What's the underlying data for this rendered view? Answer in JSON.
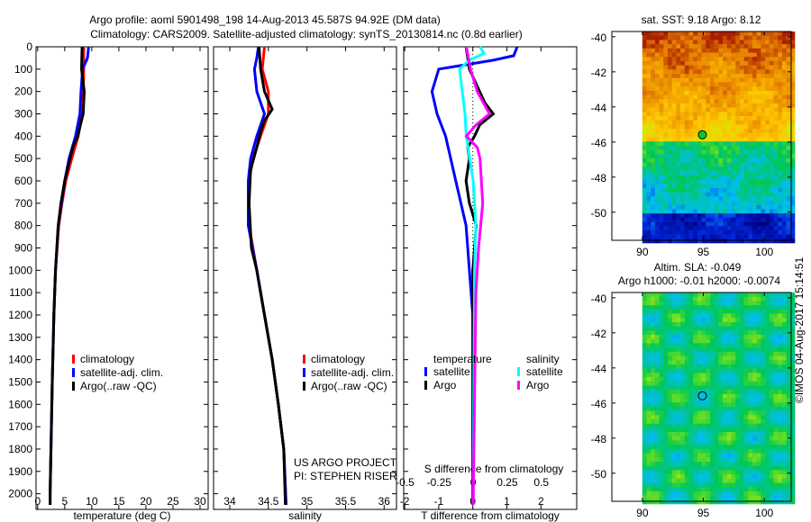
{
  "title": {
    "line1": "Argo profile: aoml 5901498_198 14-Aug-2013 45.587S 94.92E (DM data)",
    "line2": "Climatology: CARS2009. Satellite-adjusted climatology: synTS_20130814.nc (0.8d earlier)"
  },
  "credit": "©IMOS 04-Aug-2017 15:14:51",
  "project": {
    "line1": "US ARGO PROJECT",
    "line2": "PI: STEPHEN RISER"
  },
  "colors": {
    "climatology": "#ff0000",
    "satellite": "#0000ff",
    "argo": "#000000",
    "sat_s": "#00ffff",
    "argo_s": "#ff00ff"
  },
  "chart_data": [
    {
      "type": "line",
      "xlabel": "temperature (deg C)",
      "ylabel": "depth",
      "xlim": [
        -0.3,
        31.5
      ],
      "ylim": [
        2070,
        0
      ],
      "xticks": [
        "0",
        "5",
        "10",
        "15",
        "20",
        "25",
        "30"
      ],
      "yticks": [
        "0",
        "100",
        "200",
        "300",
        "400",
        "500",
        "600",
        "700",
        "800",
        "900",
        "1000",
        "1100",
        "1200",
        "1300",
        "1400",
        "1500",
        "1600",
        "1700",
        "1800",
        "1900",
        "2000"
      ],
      "legend": [
        "climatology",
        "satellite-adj. clim.",
        "Argo(..raw -QC)"
      ],
      "series": [
        {
          "name": "climatology",
          "color": "#ff0000",
          "depth": [
            0,
            100,
            250,
            300,
            400,
            500,
            600,
            700,
            800,
            1000,
            1200,
            1500,
            2000,
            2050
          ],
          "values": [
            8.5,
            8.5,
            8.4,
            8.2,
            7.5,
            6.3,
            5.2,
            4.5,
            3.9,
            3.3,
            3.0,
            2.7,
            2.3,
            2.3
          ]
        },
        {
          "name": "satellite-adj. clim.",
          "color": "#0000ff",
          "depth": [
            0,
            50,
            100,
            200,
            300,
            400,
            500,
            600,
            800,
            1000,
            1200,
            1500,
            2000,
            2050
          ],
          "values": [
            9.4,
            9.2,
            8.3,
            8.0,
            7.8,
            7.0,
            5.8,
            5.0,
            3.8,
            3.3,
            3.0,
            2.7,
            2.3,
            2.3
          ]
        },
        {
          "name": "Argo(..raw -QC)",
          "color": "#000000",
          "depth": [
            0,
            100,
            200,
            300,
            400,
            450,
            500,
            600,
            700,
            800,
            1000,
            1200,
            1500,
            2000,
            2050
          ],
          "values": [
            8.2,
            8.1,
            8.6,
            8.4,
            7.4,
            6.5,
            6.0,
            5.0,
            4.3,
            3.8,
            3.3,
            3.0,
            2.7,
            2.3,
            2.3
          ]
        }
      ]
    },
    {
      "type": "line",
      "xlabel": "salinity",
      "xlim": [
        33.79,
        36.16
      ],
      "ylim": [
        2070,
        0
      ],
      "xticks": [
        "34",
        "34.5",
        "35",
        "35.5",
        "36"
      ],
      "legend": [
        "climatology",
        "satellite-adj. clim.",
        "Argo(..raw -QC)"
      ],
      "series": [
        {
          "name": "climatology",
          "color": "#ff0000",
          "depth": [
            0,
            100,
            200,
            300,
            400,
            500,
            600,
            800,
            1000,
            1200,
            1400,
            1600,
            1800,
            2050
          ],
          "values": [
            34.45,
            34.42,
            34.5,
            34.5,
            34.4,
            34.3,
            34.25,
            34.25,
            34.35,
            34.45,
            34.55,
            34.63,
            34.7,
            34.73
          ]
        },
        {
          "name": "satellite-adj. clim.",
          "color": "#0000ff",
          "depth": [
            0,
            50,
            100,
            200,
            300,
            400,
            500,
            600,
            800,
            1000,
            1200,
            1400,
            1600,
            1800,
            2050
          ],
          "values": [
            34.37,
            34.35,
            34.32,
            34.35,
            34.45,
            34.35,
            34.27,
            34.24,
            34.24,
            34.35,
            34.45,
            34.55,
            34.63,
            34.7,
            34.73
          ]
        },
        {
          "name": "Argo(..raw -QC)",
          "color": "#000000",
          "depth": [
            0,
            100,
            200,
            280,
            330,
            380,
            450,
            550,
            700,
            900,
            1000,
            1200,
            1400,
            1600,
            1800,
            2050
          ],
          "values": [
            34.38,
            34.4,
            34.45,
            34.55,
            34.45,
            34.4,
            34.35,
            34.27,
            34.25,
            34.28,
            34.35,
            34.45,
            34.55,
            34.63,
            34.7,
            34.72
          ]
        }
      ]
    },
    {
      "type": "line",
      "xlabel": "T difference from climatology",
      "x2label": "S difference from climatology",
      "xlim": [
        -2.03,
        3.05
      ],
      "x2lim": [
        -0.51,
        0.76
      ],
      "ylim": [
        2070,
        0
      ],
      "xticks": [
        "-2",
        "-1",
        "0",
        "1",
        "2"
      ],
      "x2ticks": [
        "-0.5",
        "-0.25",
        "0",
        "0.25",
        "0.5"
      ],
      "legend": {
        "temperature": "temperature",
        "salinity": "salinity",
        "t_sat": "satellite",
        "t_argo": "Argo",
        "s_sat": "satellite",
        "s_argo": "Argo"
      },
      "series": [
        {
          "name": "T satellite",
          "axis": "T",
          "color": "#0000ff",
          "depth": [
            0,
            40,
            60,
            100,
            200,
            300,
            400,
            600,
            800,
            1000,
            1200,
            2050
          ],
          "values": [
            1.3,
            1.2,
            0.6,
            -1.0,
            -1.2,
            -1.05,
            -0.8,
            -0.5,
            -0.2,
            -0.1,
            0,
            0
          ]
        },
        {
          "name": "T Argo",
          "axis": "T",
          "color": "#000000",
          "depth": [
            0,
            100,
            200,
            250,
            300,
            350,
            400,
            450,
            500,
            600,
            700,
            800,
            1000,
            1200,
            2050
          ],
          "values": [
            -0.2,
            -0.1,
            0.2,
            0.35,
            0.6,
            0.2,
            0.05,
            -0.15,
            -0.1,
            -0.2,
            -0.1,
            0.1,
            0,
            0,
            0
          ]
        },
        {
          "name": "S satellite",
          "axis": "S",
          "color": "#00ffff",
          "depth": [
            0,
            30,
            60,
            100,
            200,
            300,
            400,
            600,
            800,
            1000,
            2050
          ],
          "values": [
            0.05,
            0.08,
            -0.03,
            -0.1,
            -0.08,
            -0.06,
            -0.05,
            0,
            0.02,
            0.01,
            0
          ]
        },
        {
          "name": "S Argo",
          "axis": "S",
          "color": "#ff00ff",
          "depth": [
            0,
            100,
            200,
            300,
            350,
            400,
            450,
            500,
            700,
            900,
            1100,
            2050
          ],
          "values": [
            -0.05,
            -0.02,
            0.03,
            0.12,
            0.02,
            -0.05,
            0.03,
            0.05,
            0.07,
            0.04,
            0.02,
            0
          ]
        }
      ]
    },
    {
      "type": "heatmap",
      "title": "sat. SST: 9.18 Argo: 8.12",
      "xticks": [
        "90",
        "95",
        "100"
      ],
      "yticks": [
        "-40",
        "-42",
        "-44",
        "-46",
        "-48",
        "-50"
      ],
      "xlim": [
        87.5,
        102.2
      ],
      "ylim": [
        -51.6,
        -39.7
      ],
      "marker": {
        "lon": 94.92,
        "lat": -45.587
      }
    },
    {
      "type": "heatmap",
      "title1": "Altim. SLA: -0.049",
      "title2": "Argo h1000: -0.01 h2000: -0.0074",
      "xticks": [
        "90",
        "95",
        "100"
      ],
      "yticks": [
        "-40",
        "-42",
        "-44",
        "-46",
        "-48",
        "-50"
      ],
      "xlim": [
        87.5,
        102.2
      ],
      "ylim": [
        -51.6,
        -39.7
      ],
      "marker": {
        "lon": 94.92,
        "lat": -45.587
      }
    }
  ]
}
